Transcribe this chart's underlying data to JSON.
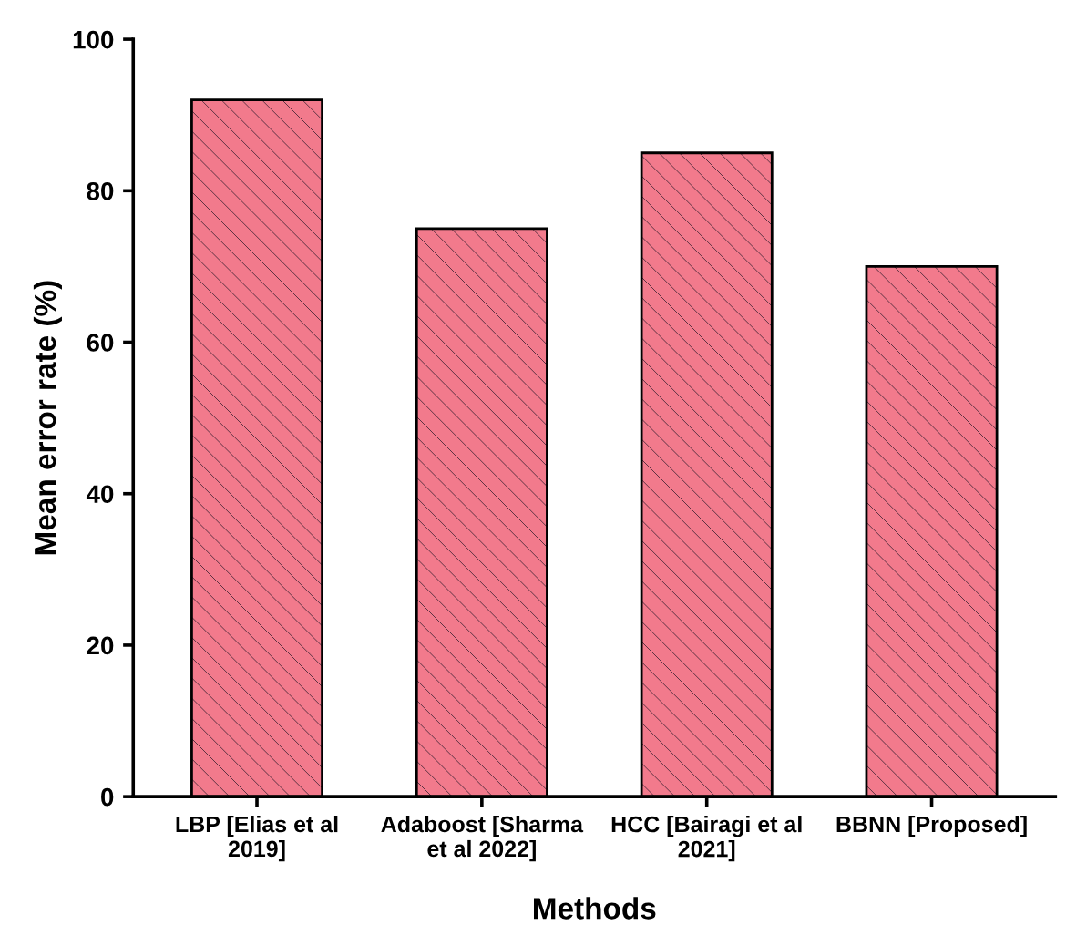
{
  "chart_data": {
    "type": "bar",
    "xlabel": "Methods",
    "ylabel": "Mean error rate (%)",
    "categories": [
      "LBP [Elias et al\n2019]",
      "Adaboost [Sharma\net al 2022]",
      "HCC [Bairagi et al\n2021]",
      "BBNN [Proposed]"
    ],
    "values": [
      92,
      75,
      85,
      70
    ],
    "color": "#f27a8c",
    "ylim": [
      0,
      100
    ],
    "yticks": [
      0,
      20,
      40,
      60,
      80,
      100
    ],
    "grid": false,
    "legend": false
  }
}
